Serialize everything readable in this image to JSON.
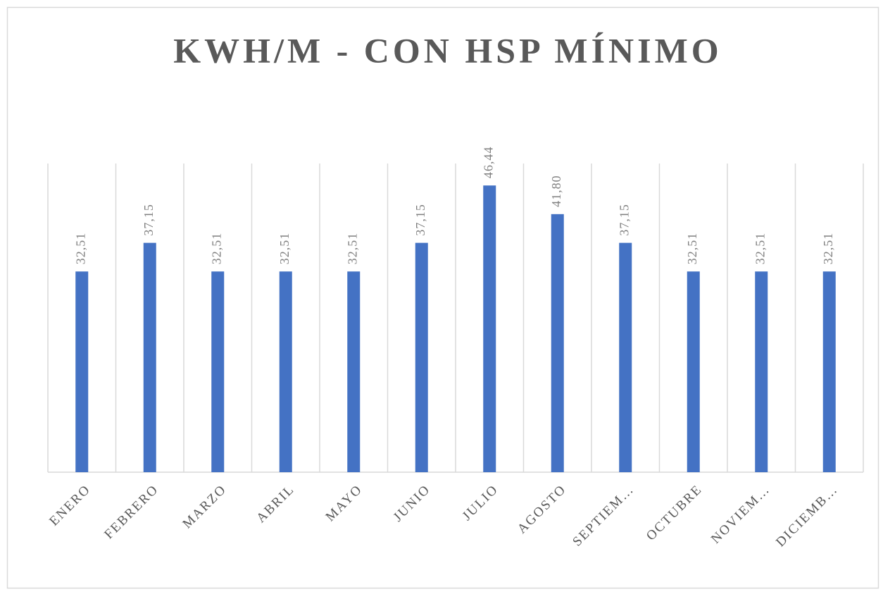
{
  "chart_data": {
    "type": "bar",
    "title": "KWH/M - CON HSP MÍNIMO",
    "categories": [
      "ENERO",
      "FEBRERO",
      "MARZO",
      "ABRIL",
      "MAYO",
      "JUNIO",
      "JULIO",
      "AGOSTO",
      "SEPTIEM…",
      "OCTUBRE",
      "NOVIEM…",
      "DICIEMB…"
    ],
    "values": [
      32.51,
      37.15,
      32.51,
      32.51,
      32.51,
      37.15,
      46.44,
      41.8,
      37.15,
      32.51,
      32.51,
      32.51
    ],
    "value_labels": [
      "32,51",
      "37,15",
      "32,51",
      "32,51",
      "32,51",
      "37,15",
      "46,44",
      "41,80",
      "37,15",
      "32,51",
      "32,51",
      "32,51"
    ],
    "color": "#4472c4",
    "ylim": [
      0,
      50
    ]
  }
}
